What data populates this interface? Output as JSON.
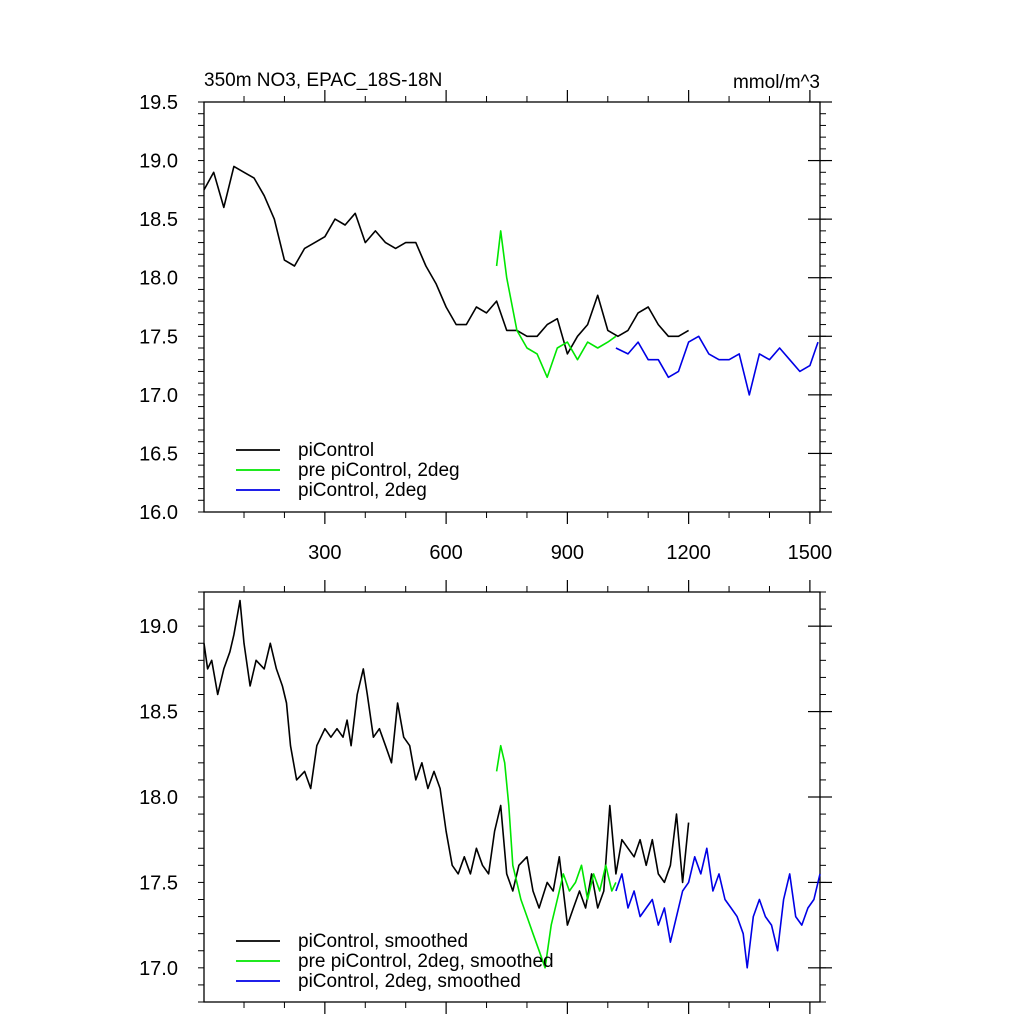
{
  "chart_data": [
    {
      "type": "line",
      "title": "350m NO3, EPAC_18S-18N",
      "units": "mmol/m^3",
      "xlim": [
        1,
        1525
      ],
      "ylim": [
        16.0,
        19.5
      ],
      "xticks": [
        300,
        600,
        900,
        1200,
        1500
      ],
      "xtick_labels": [
        "300",
        "600",
        "900",
        "1200",
        "1500"
      ],
      "yticks": [
        16.0,
        16.5,
        17.0,
        17.5,
        18.0,
        18.5,
        19.0,
        19.5
      ],
      "ytick_labels": [
        "16.0",
        "16.5",
        "17.0",
        "17.5",
        "18.0",
        "18.5",
        "19.0",
        "19.5"
      ],
      "grid": false,
      "legend_position": "bottom-left",
      "series": [
        {
          "name": "piControl",
          "color": "#000000",
          "x": [
            1,
            25,
            50,
            75,
            100,
            125,
            150,
            175,
            200,
            225,
            250,
            275,
            300,
            325,
            350,
            375,
            400,
            425,
            450,
            475,
            500,
            525,
            550,
            575,
            600,
            625,
            650,
            675,
            700,
            725,
            750,
            775,
            800,
            825,
            850,
            875,
            900,
            925,
            950,
            975,
            1000,
            1025,
            1050,
            1075,
            1100,
            1125,
            1150,
            1175,
            1200
          ],
          "y": [
            18.75,
            18.9,
            18.6,
            18.95,
            18.9,
            18.85,
            18.7,
            18.5,
            18.15,
            18.1,
            18.25,
            18.3,
            18.35,
            18.5,
            18.45,
            18.55,
            18.3,
            18.4,
            18.3,
            18.25,
            18.3,
            18.3,
            18.1,
            17.95,
            17.75,
            17.6,
            17.6,
            17.75,
            17.7,
            17.8,
            17.55,
            17.55,
            17.5,
            17.5,
            17.6,
            17.65,
            17.35,
            17.5,
            17.6,
            17.85,
            17.55,
            17.5,
            17.55,
            17.7,
            17.75,
            17.6,
            17.5,
            17.5,
            17.55
          ]
        },
        {
          "name": "pre piControl, 2deg",
          "color": "#00e600",
          "x": [
            725,
            735,
            750,
            775,
            800,
            825,
            850,
            875,
            900,
            925,
            950,
            975,
            1000,
            1020
          ],
          "y": [
            18.1,
            18.4,
            18.0,
            17.55,
            17.4,
            17.35,
            17.15,
            17.4,
            17.45,
            17.3,
            17.45,
            17.4,
            17.45,
            17.5
          ]
        },
        {
          "name": "piControl, 2deg",
          "color": "#0000e6",
          "x": [
            1020,
            1050,
            1075,
            1100,
            1125,
            1150,
            1175,
            1200,
            1225,
            1250,
            1275,
            1300,
            1325,
            1350,
            1375,
            1400,
            1425,
            1450,
            1475,
            1500,
            1520
          ],
          "y": [
            17.4,
            17.35,
            17.45,
            17.3,
            17.3,
            17.15,
            17.2,
            17.45,
            17.5,
            17.35,
            17.3,
            17.3,
            17.35,
            17.0,
            17.35,
            17.3,
            17.4,
            17.3,
            17.2,
            17.25,
            17.45
          ]
        }
      ]
    },
    {
      "type": "line",
      "xlim": [
        1,
        1525
      ],
      "ylim": [
        16.8,
        19.2
      ],
      "xticks": [
        300,
        600,
        900,
        1200,
        1500
      ],
      "yticks": [
        17.0,
        17.5,
        18.0,
        18.5,
        19.0
      ],
      "ytick_labels": [
        "17.0",
        "17.5",
        "18.0",
        "18.5",
        "19.0"
      ],
      "grid": false,
      "legend_position": "bottom-left",
      "series": [
        {
          "name": "piControl, smoothed",
          "color": "#000000",
          "x": [
            1,
            10,
            20,
            35,
            50,
            65,
            75,
            90,
            100,
            115,
            130,
            150,
            165,
            180,
            195,
            205,
            215,
            230,
            250,
            265,
            280,
            300,
            315,
            330,
            345,
            355,
            365,
            380,
            395,
            405,
            420,
            435,
            450,
            465,
            480,
            495,
            510,
            525,
            540,
            555,
            570,
            585,
            600,
            615,
            630,
            645,
            660,
            675,
            690,
            705,
            720,
            735,
            750,
            765,
            780,
            800,
            815,
            830,
            850,
            865,
            880,
            895,
            900,
            915,
            930,
            945,
            960,
            975,
            990,
            1005,
            1020,
            1035,
            1050,
            1065,
            1080,
            1095,
            1110,
            1125,
            1140,
            1155,
            1170,
            1185,
            1200
          ],
          "y": [
            18.9,
            18.75,
            18.8,
            18.6,
            18.75,
            18.85,
            18.95,
            19.15,
            18.9,
            18.65,
            18.8,
            18.75,
            18.9,
            18.75,
            18.65,
            18.55,
            18.3,
            18.1,
            18.15,
            18.05,
            18.3,
            18.4,
            18.35,
            18.4,
            18.35,
            18.45,
            18.3,
            18.6,
            18.75,
            18.6,
            18.35,
            18.4,
            18.3,
            18.2,
            18.55,
            18.35,
            18.3,
            18.1,
            18.2,
            18.05,
            18.15,
            18.05,
            17.8,
            17.6,
            17.55,
            17.65,
            17.55,
            17.7,
            17.6,
            17.55,
            17.8,
            17.95,
            17.55,
            17.45,
            17.6,
            17.65,
            17.45,
            17.35,
            17.5,
            17.45,
            17.65,
            17.35,
            17.25,
            17.35,
            17.45,
            17.35,
            17.55,
            17.35,
            17.45,
            17.95,
            17.55,
            17.75,
            17.7,
            17.65,
            17.75,
            17.6,
            17.75,
            17.55,
            17.5,
            17.6,
            17.9,
            17.5,
            17.85
          ]
        },
        {
          "name": "pre piControl, 2deg, smoothed",
          "color": "#00e600",
          "x": [
            725,
            735,
            745,
            755,
            765,
            775,
            785,
            800,
            815,
            830,
            845,
            860,
            875,
            890,
            905,
            920,
            935,
            950,
            965,
            980,
            995,
            1010,
            1020
          ],
          "y": [
            18.15,
            18.3,
            18.2,
            17.95,
            17.6,
            17.5,
            17.4,
            17.3,
            17.2,
            17.1,
            17.0,
            17.25,
            17.4,
            17.55,
            17.45,
            17.5,
            17.6,
            17.4,
            17.55,
            17.45,
            17.6,
            17.45,
            17.5
          ]
        },
        {
          "name": "piControl, 2deg, smoothed",
          "color": "#0000e6",
          "x": [
            1020,
            1035,
            1050,
            1065,
            1080,
            1095,
            1110,
            1125,
            1140,
            1155,
            1170,
            1185,
            1200,
            1215,
            1230,
            1245,
            1260,
            1275,
            1290,
            1305,
            1320,
            1335,
            1345,
            1360,
            1375,
            1390,
            1405,
            1420,
            1435,
            1450,
            1465,
            1480,
            1495,
            1510,
            1525
          ],
          "y": [
            17.45,
            17.55,
            17.35,
            17.45,
            17.3,
            17.35,
            17.4,
            17.25,
            17.35,
            17.15,
            17.3,
            17.45,
            17.5,
            17.65,
            17.55,
            17.7,
            17.45,
            17.55,
            17.4,
            17.35,
            17.3,
            17.2,
            17.0,
            17.3,
            17.4,
            17.3,
            17.25,
            17.1,
            17.4,
            17.55,
            17.3,
            17.25,
            17.35,
            17.4,
            17.55
          ]
        }
      ]
    }
  ]
}
